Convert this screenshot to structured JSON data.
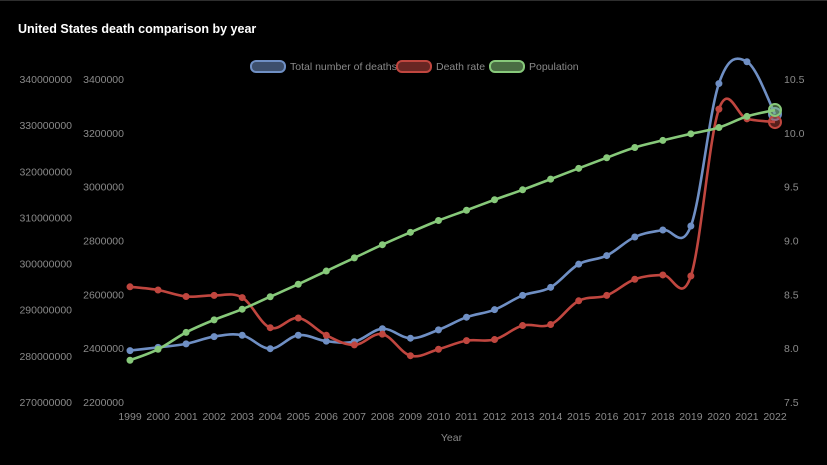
{
  "chart_data": {
    "type": "line",
    "title": "United States death comparison by year",
    "xlabel": "Year",
    "categories": [
      "1999",
      "2000",
      "2001",
      "2002",
      "2003",
      "2004",
      "2005",
      "2006",
      "2007",
      "2008",
      "2009",
      "2010",
      "2011",
      "2012",
      "2013",
      "2014",
      "2015",
      "2016",
      "2017",
      "2018",
      "2019",
      "2020",
      "2021",
      "2022"
    ],
    "series": [
      {
        "name": "Total number of deaths",
        "color": "#6f8fc4",
        "axis": "y_deaths",
        "values": [
          2391000,
          2403000,
          2416000,
          2443000,
          2448000,
          2398000,
          2448000,
          2426000,
          2424000,
          2472000,
          2437000,
          2468000,
          2515000,
          2543000,
          2596000,
          2626000,
          2712000,
          2744000,
          2813000,
          2839000,
          2854000,
          3383000,
          3464000,
          3270000
        ]
      },
      {
        "name": "Death rate",
        "color": "#c0463f",
        "axis": "y_rate",
        "values": [
          8.57,
          8.54,
          8.48,
          8.49,
          8.47,
          8.19,
          8.28,
          8.12,
          8.03,
          8.13,
          7.93,
          7.99,
          8.07,
          8.08,
          8.21,
          8.22,
          8.44,
          8.49,
          8.64,
          8.68,
          8.67,
          10.22,
          10.13,
          10.1
        ]
      },
      {
        "name": "Population",
        "color": "#87c97a",
        "axis": "y_pop",
        "values": [
          279040000,
          281420000,
          285080000,
          287800000,
          290110000,
          292810000,
          295520000,
          298380000,
          301230000,
          304090000,
          306770000,
          309330000,
          311560000,
          313830000,
          315990000,
          318300000,
          320640000,
          322940000,
          325150000,
          326690000,
          328120000,
          329480000,
          331890000,
          333290000
        ]
      }
    ],
    "y_axes": {
      "y_pop": {
        "position": "left",
        "min": 270000000,
        "max": 340000000,
        "ticks": [
          "270000000",
          "280000000",
          "290000000",
          "300000000",
          "310000000",
          "320000000",
          "330000000",
          "340000000"
        ]
      },
      "y_deaths": {
        "position": "left",
        "min": 2200000,
        "max": 3400000,
        "ticks": [
          "2200000",
          "2400000",
          "2600000",
          "2800000",
          "3000000",
          "3200000",
          "3400000"
        ]
      },
      "y_rate": {
        "position": "right",
        "min": 7.5,
        "max": 10.5,
        "ticks": [
          "7.5",
          "8.0",
          "8.5",
          "9.0",
          "9.5",
          "10.0",
          "10.5"
        ]
      }
    },
    "legend_position": "top",
    "grid": false
  }
}
